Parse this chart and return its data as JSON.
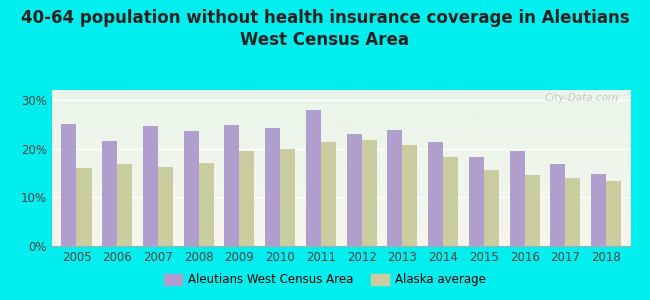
{
  "title": "40-64 population without health insurance coverage in Aleutians\nWest Census Area",
  "years": [
    2005,
    2006,
    2007,
    2008,
    2009,
    2010,
    2011,
    2012,
    2013,
    2014,
    2015,
    2016,
    2017,
    2018
  ],
  "aleutians": [
    25.0,
    21.5,
    24.7,
    23.5,
    24.8,
    24.2,
    28.0,
    22.9,
    23.8,
    21.3,
    18.2,
    19.5,
    16.8,
    14.7
  ],
  "alaska": [
    16.0,
    16.8,
    16.2,
    17.0,
    19.5,
    20.0,
    21.3,
    21.8,
    20.7,
    18.3,
    15.5,
    14.5,
    14.0,
    13.3
  ],
  "bar_color_aleutians": "#b09fcc",
  "bar_color_alaska": "#c8cc9f",
  "background_color": "#00eeee",
  "ylim": [
    0,
    32
  ],
  "yticks": [
    0,
    10,
    20,
    30
  ],
  "ytick_labels": [
    "0%",
    "10%",
    "20%",
    "30%"
  ],
  "legend_label_aleutians": "Aleutians West Census Area",
  "legend_label_alaska": "Alaska average",
  "title_fontsize": 12,
  "tick_fontsize": 8.5
}
